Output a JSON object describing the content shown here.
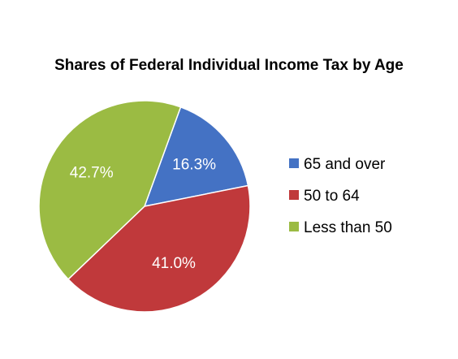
{
  "chart_data": {
    "type": "pie",
    "title": "Shares of Federal Individual Income Tax by Age",
    "categories": [
      "65 and over",
      "50 to 64",
      "Less than 50"
    ],
    "values": [
      16.3,
      41.0,
      42.7
    ],
    "labels": [
      "16.3%",
      "41.0%",
      "42.7%"
    ],
    "colors": [
      "#4472C4",
      "#C0393B",
      "#9BBB43"
    ],
    "start_angle_deg": 20,
    "direction": "clockwise",
    "legend_position": "right"
  }
}
